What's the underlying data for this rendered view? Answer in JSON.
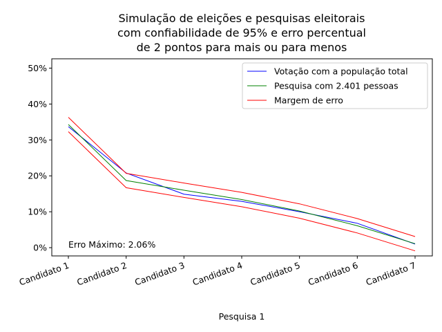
{
  "chart_data": {
    "type": "line",
    "title_lines": [
      "Simulação de eleições e pesquisas eleitorais",
      "com confiabilidade de 95% e erro percentual",
      "de 2 pontos para mais ou para menos"
    ],
    "xlabel": "Pesquisa 1",
    "ylabel": "",
    "categories": [
      "Candidato 1",
      "Candidato 2",
      "Candidato 3",
      "Candidato 4",
      "Candidato 5",
      "Candidato 6",
      "Candidato 7"
    ],
    "y_ticks": [
      0,
      10,
      20,
      30,
      40,
      50
    ],
    "y_tick_labels": [
      "0%",
      "10%",
      "20%",
      "30%",
      "40%",
      "50%"
    ],
    "ylim": [
      -2.3,
      52.6
    ],
    "grid": false,
    "legend_position": "top-right",
    "series": [
      {
        "name": "Votação com a população total",
        "color": "#0000ff",
        "values": [
          33.7,
          20.8,
          14.9,
          12.9,
          10.0,
          6.8,
          1.0
        ]
      },
      {
        "name": "Pesquisa com 2.401 pessoas",
        "color": "#008000",
        "values": [
          34.3,
          18.7,
          16.0,
          13.4,
          10.2,
          6.1,
          1.1
        ]
      },
      {
        "name": "Margem de erro",
        "color": "#ff0000",
        "values": [
          36.3,
          20.7,
          18.0,
          15.4,
          12.2,
          8.1,
          3.1
        ]
      },
      {
        "name": "",
        "color": "#ff0000",
        "values": [
          32.3,
          16.7,
          14.0,
          11.4,
          8.2,
          4.1,
          -0.9
        ]
      }
    ],
    "annotation": "Erro Máximo: 2.06%"
  }
}
